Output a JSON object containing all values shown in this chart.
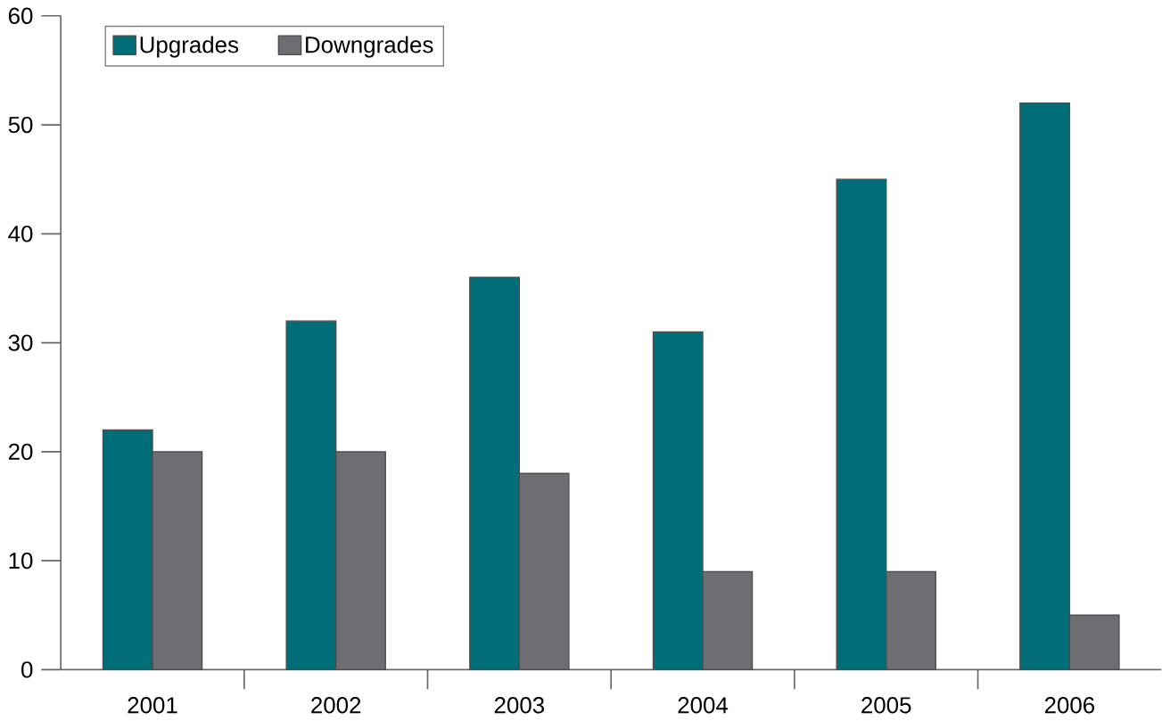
{
  "chart_data": {
    "type": "bar",
    "categories": [
      "2001",
      "2002",
      "2003",
      "2004",
      "2005",
      "2006"
    ],
    "series": [
      {
        "name": "Upgrades",
        "color": "#006e78",
        "values": [
          22,
          32,
          36,
          31,
          45,
          52
        ]
      },
      {
        "name": "Downgrades",
        "color": "#6e6e72",
        "values": [
          20,
          20,
          18,
          9,
          9,
          5
        ]
      }
    ],
    "ylim": [
      0,
      60
    ],
    "yticks": [
      0,
      10,
      20,
      30,
      40,
      50,
      60
    ],
    "legend": "top left"
  }
}
